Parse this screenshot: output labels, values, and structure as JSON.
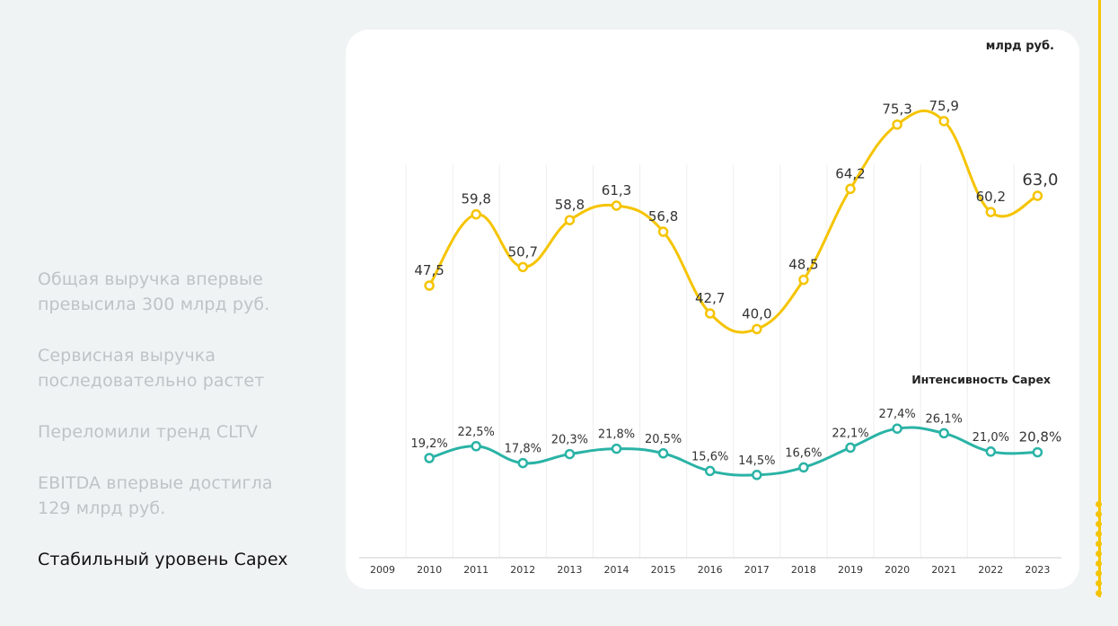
{
  "menu": {
    "items": [
      {
        "lines": [
          "Общая выручка впервые",
          "превысила 300 млрд руб."
        ],
        "active": false
      },
      {
        "lines": [
          "Сервисная выручка",
          "последовательно растет"
        ],
        "active": false
      },
      {
        "lines": [
          "Переломили тренд CLTV"
        ],
        "active": false
      },
      {
        "lines": [
          "EBITDA впервые достигла",
          "129 млрд руб."
        ],
        "active": false
      },
      {
        "lines": [
          "Стабильный уровень Capex"
        ],
        "active": true
      }
    ]
  },
  "colors": {
    "series_yellow": "#f5c400",
    "series_teal": "#2ab3a6",
    "active_text": "#111111",
    "inactive_text": "#bfc3c6",
    "rail": "#f5c400"
  },
  "chart_data": {
    "type": "line",
    "unit_label": "млрд руб.",
    "categories": [
      "2009",
      "2010",
      "2011",
      "2012",
      "2013",
      "2014",
      "2015",
      "2016",
      "2017",
      "2018",
      "2019",
      "2020",
      "2021",
      "2022",
      "2023"
    ],
    "series": [
      {
        "values": [
          null,
          47.5,
          59.8,
          50.7,
          58.8,
          61.3,
          56.8,
          42.7,
          40.0,
          48.5,
          64.2,
          75.3,
          75.9,
          60.2,
          63.0
        ],
        "labels": [
          null,
          "47,5",
          "59,8",
          "50,7",
          "58,8",
          "61,3",
          "56,8",
          "42,7",
          "40,0",
          "48,5",
          "64,2",
          "75,3",
          "75,9",
          "60,2",
          "63,0"
        ],
        "color": "#f5c400"
      },
      {
        "name": "Интенсивность Capex",
        "values": [
          null,
          19.2,
          22.5,
          17.8,
          20.3,
          21.8,
          20.5,
          15.6,
          14.5,
          16.6,
          22.1,
          27.4,
          26.1,
          21.0,
          20.8
        ],
        "labels": [
          null,
          "19,2%",
          "22,5%",
          "17,8%",
          "20,3%",
          "21,8%",
          "20,5%",
          "15,6%",
          "14,5%",
          "16,6%",
          "22,1%",
          "27,4%",
          "26,1%",
          "21,0%",
          "20,8%"
        ],
        "color": "#2ab3a6"
      }
    ],
    "grid": true,
    "legend": "none"
  }
}
